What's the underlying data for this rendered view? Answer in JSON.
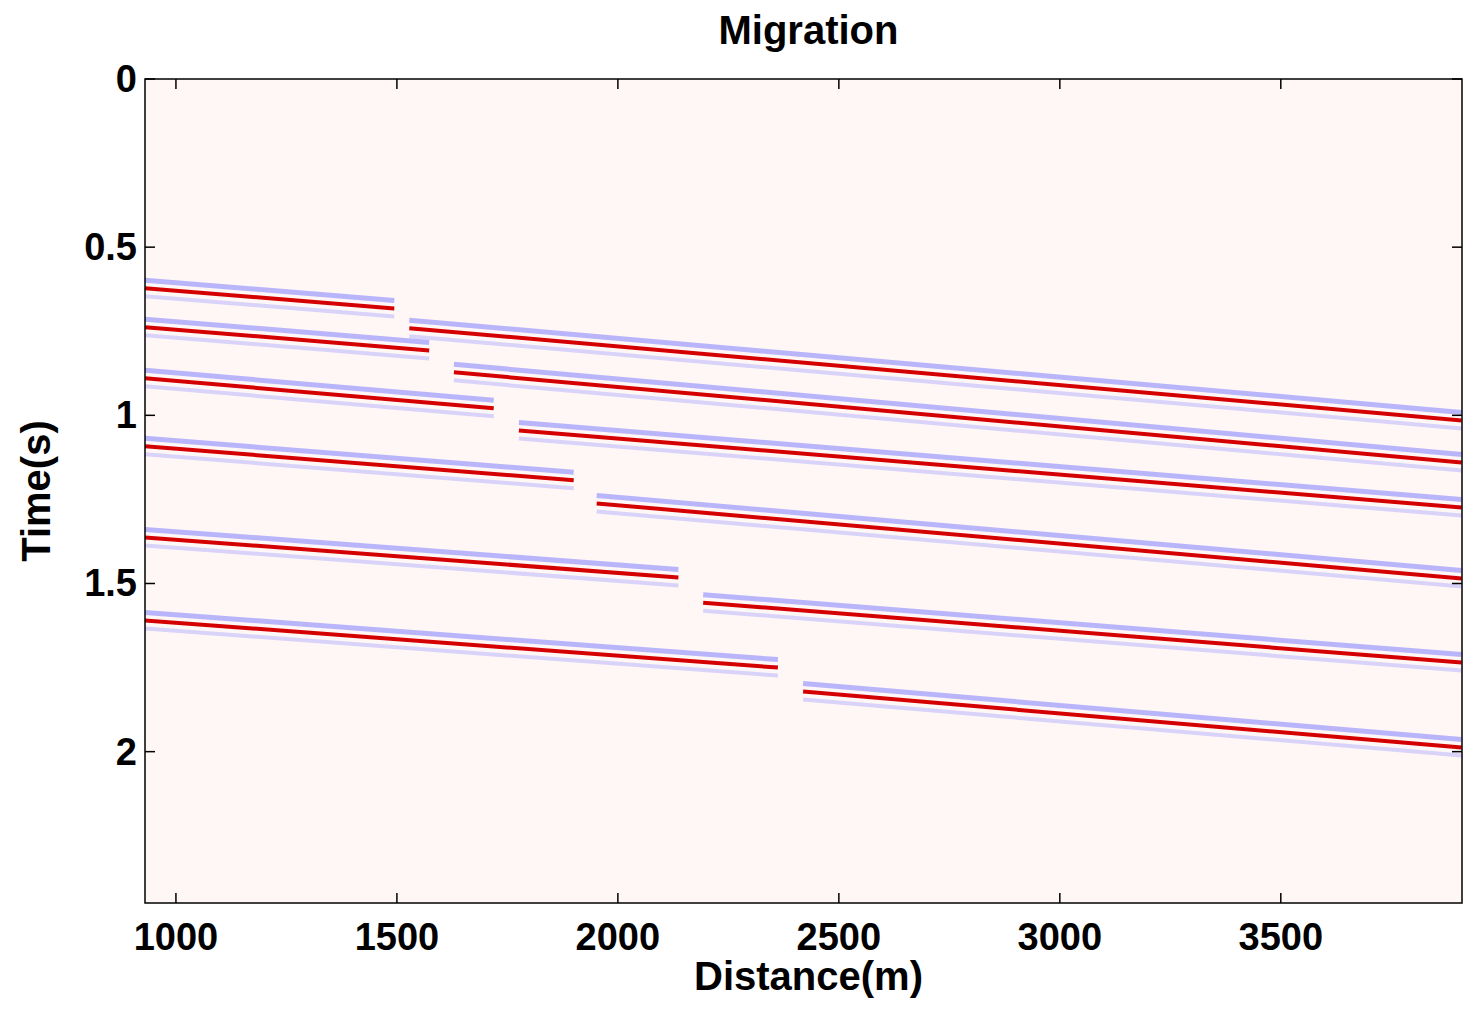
{
  "chart_data": {
    "type": "line",
    "title": "Migration",
    "x_label": "Distance(m)",
    "y_label": "Time(s)",
    "color": "#d40000",
    "xlim": [
      930,
      3910
    ],
    "ylim": [
      2.45,
      0
    ],
    "xticks": [
      1000,
      1500,
      2000,
      2500,
      3000,
      3500
    ],
    "yticks": [
      0,
      0.5,
      1,
      1.5,
      2
    ],
    "grid": false,
    "series": [
      {
        "x": [
          930,
          1494
        ],
        "values": [
          0.622,
          0.682
        ]
      },
      {
        "x": [
          1528,
          3909
        ],
        "values": [
          0.741,
          1.015
        ]
      },
      {
        "x": [
          930,
          1573
        ],
        "values": [
          0.738,
          0.807
        ]
      },
      {
        "x": [
          1629,
          3909
        ],
        "values": [
          0.872,
          1.14
        ]
      },
      {
        "x": [
          930,
          1719
        ],
        "values": [
          0.89,
          0.979
        ]
      },
      {
        "x": [
          1776,
          3909
        ],
        "values": [
          1.045,
          1.274
        ]
      },
      {
        "x": [
          930,
          1900
        ],
        "values": [
          1.092,
          1.193
        ]
      },
      {
        "x": [
          1952,
          3909
        ],
        "values": [
          1.262,
          1.485
        ]
      },
      {
        "x": [
          930,
          2137
        ],
        "values": [
          1.363,
          1.482
        ]
      },
      {
        "x": [
          2193,
          3909
        ],
        "values": [
          1.557,
          1.735
        ]
      },
      {
        "x": [
          930,
          2362
        ],
        "values": [
          1.61,
          1.75
        ]
      },
      {
        "x": [
          2419,
          3909
        ],
        "values": [
          1.821,
          1.988
        ]
      }
    ]
  }
}
